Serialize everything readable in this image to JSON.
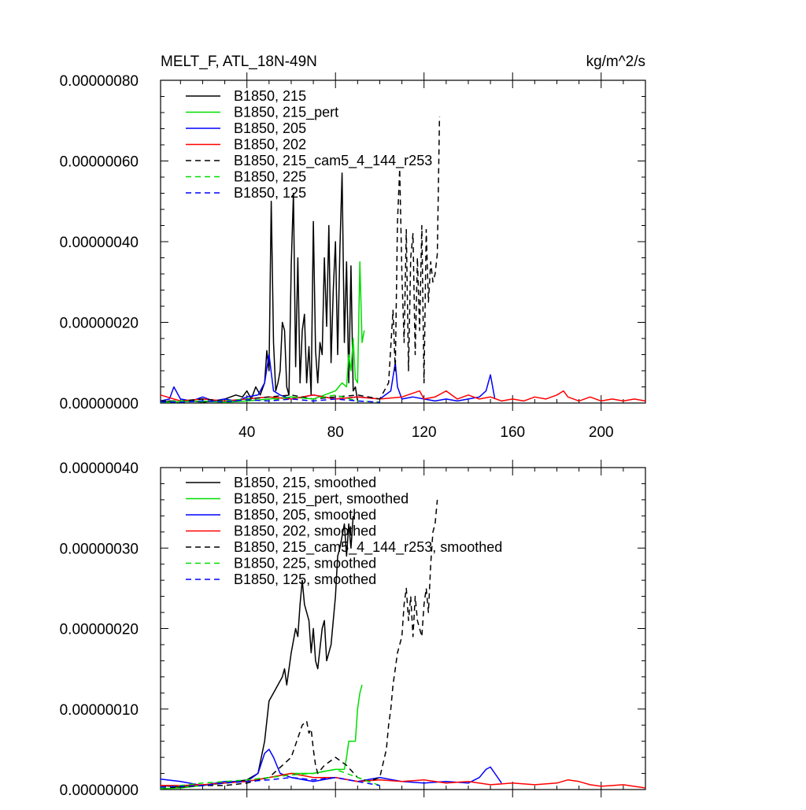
{
  "chart_data": [
    {
      "type": "line",
      "title_left": "MELT_F, ATL_18N-49N",
      "title_right": "kg/m^2/s",
      "xlim": [
        1,
        220
      ],
      "ylim": [
        0,
        8e-07
      ],
      "x_ticks": [
        40,
        80,
        120,
        160,
        200
      ],
      "x_tick_labels": [
        "40",
        "80",
        "120",
        "160",
        "200"
      ],
      "y_ticks": [
        0,
        2e-07,
        4e-07,
        6e-07,
        8e-07
      ],
      "y_tick_labels": [
        "0.00000000",
        "0.00000020",
        "0.00000040",
        "0.00000060",
        "0.00000080"
      ],
      "legend_position": "top-left",
      "series": [
        {
          "name": "B1850, 215",
          "color": "#000000",
          "dash": false,
          "x": [
            1,
            5,
            10,
            15,
            20,
            25,
            30,
            35,
            38,
            40,
            42,
            44,
            46,
            48,
            49,
            50,
            51,
            52,
            53,
            54,
            55,
            56,
            57,
            58,
            59,
            60,
            61,
            62,
            63,
            64,
            65,
            66,
            67,
            68,
            69,
            70,
            71,
            72,
            73,
            74,
            75,
            76,
            77,
            78,
            79,
            80,
            81,
            82,
            83,
            84,
            85,
            86,
            87,
            88,
            89,
            90
          ],
          "y": [
            0,
            5e-09,
            2e-09,
            5e-09,
            2e-09,
            5e-09,
            1e-08,
            2e-08,
            1.5e-08,
            3e-08,
            1e-08,
            4e-08,
            2e-08,
            5e-08,
            1.3e-07,
            8e-08,
            5e-07,
            1.5e-07,
            3e-08,
            5e-08,
            8e-08,
            2e-07,
            1.8e-07,
            4e-08,
            2e-08,
            3.4e-07,
            5.2e-07,
            9e-08,
            3.6e-07,
            5e-08,
            1.8e-07,
            2.2e-07,
            5e-08,
            1.4e-07,
            2e-08,
            4.5e-07,
            1.3e-07,
            5e-08,
            1.5e-07,
            1.2e-07,
            3.6e-07,
            1.9e-07,
            4.4e-07,
            1e-07,
            2.8e-07,
            4e-07,
            1.2e-07,
            3.8e-07,
            5.7e-07,
            1.5e-07,
            3.5e-07,
            5e-08,
            3.4e-07,
            3e-08,
            4e-08,
            5e-09
          ]
        },
        {
          "name": "B1850, 215_pert",
          "color": "#00dd00",
          "dash": false,
          "x": [
            1,
            10,
            20,
            30,
            40,
            50,
            60,
            70,
            75,
            80,
            83,
            85,
            86,
            87,
            88,
            89,
            90,
            91,
            92,
            93
          ],
          "y": [
            2e-09,
            3e-09,
            5e-09,
            2e-09,
            5e-09,
            1e-08,
            1.5e-08,
            1e-08,
            2e-08,
            3e-08,
            5e-08,
            4e-08,
            1.2e-07,
            8e-08,
            1.6e-07,
            6e-08,
            5e-08,
            3.5e-07,
            1.5e-07,
            1.8e-07
          ]
        },
        {
          "name": "B1850, 205",
          "color": "#0000ff",
          "dash": false,
          "x": [
            1,
            5,
            7,
            10,
            15,
            20,
            25,
            30,
            35,
            40,
            45,
            48,
            50,
            52,
            55,
            60,
            70,
            80,
            90,
            100,
            105,
            107,
            108,
            110,
            115,
            120,
            125,
            130,
            135,
            140,
            145,
            148,
            150,
            152
          ],
          "y": [
            5e-09,
            1e-08,
            4e-08,
            1e-08,
            5e-09,
            1.5e-08,
            5e-09,
            1e-08,
            5e-09,
            1.5e-08,
            2e-08,
            5e-08,
            1.2e-07,
            3e-08,
            2e-08,
            1e-08,
            2e-08,
            1e-08,
            1.5e-08,
            1e-08,
            3e-08,
            1e-07,
            4e-08,
            1e-08,
            1.5e-08,
            1e-08,
            5e-09,
            1e-08,
            5e-09,
            1e-08,
            1.5e-08,
            3e-08,
            7e-08,
            1e-08
          ]
        },
        {
          "name": "B1850, 202",
          "color": "#ff0000",
          "dash": false,
          "x": [
            1,
            10,
            20,
            30,
            40,
            50,
            60,
            70,
            80,
            90,
            100,
            110,
            118,
            120,
            125,
            130,
            135,
            140,
            145,
            150,
            155,
            160,
            165,
            170,
            175,
            180,
            183,
            185,
            190,
            195,
            200,
            205,
            210,
            215,
            220
          ],
          "y": [
            2e-08,
            5e-09,
            1e-08,
            5e-09,
            1e-08,
            1.5e-08,
            1e-08,
            2e-08,
            1e-08,
            1.5e-08,
            1e-08,
            1.5e-08,
            3e-08,
            1e-08,
            1.5e-08,
            3e-08,
            1e-08,
            2e-08,
            1e-08,
            1.5e-08,
            5e-09,
            1e-08,
            5e-09,
            1.5e-08,
            1e-08,
            2e-08,
            3e-08,
            1.5e-08,
            5e-09,
            1.5e-08,
            5e-09,
            1e-08,
            5e-09,
            1e-08,
            5e-09
          ]
        },
        {
          "name": "B1850, 215_cam5_4_144_r253",
          "color": "#000000",
          "dash": true,
          "x": [
            1,
            10,
            20,
            30,
            40,
            50,
            60,
            70,
            80,
            90,
            100,
            104,
            106,
            107,
            108,
            109,
            110,
            111,
            112,
            113,
            114,
            115,
            116,
            117,
            118,
            119,
            120,
            121,
            122,
            123,
            124,
            125,
            126,
            127
          ],
          "y": [
            5e-09,
            5e-09,
            1e-08,
            5e-09,
            1e-08,
            1.5e-08,
            2e-08,
            1e-08,
            1.5e-08,
            2e-08,
            1e-08,
            5e-08,
            2.3e-07,
            8e-08,
            4.5e-07,
            5.8e-07,
            3.2e-07,
            1.5e-07,
            4.3e-07,
            8e-08,
            3.6e-07,
            4.2e-07,
            1.2e-07,
            3.6e-07,
            1.8e-07,
            4.4e-07,
            5e-08,
            4.3e-07,
            2.5e-07,
            3.5e-07,
            3e-07,
            3.2e-07,
            3.7e-07,
            7.1e-07
          ]
        },
        {
          "name": "B1850, 225",
          "color": "#00dd00",
          "dash": true,
          "x": [
            1,
            10,
            20,
            30,
            40,
            50,
            60,
            70,
            80,
            90,
            100
          ],
          "y": [
            2e-09,
            5e-09,
            3e-09,
            5e-09,
            1e-08,
            5e-09,
            1.5e-08,
            1e-08,
            2e-08,
            5e-09,
            2e-09
          ]
        },
        {
          "name": "B1850, 125",
          "color": "#0000ff",
          "dash": true,
          "x": [
            1,
            10,
            20,
            30,
            40,
            50,
            60,
            70,
            80,
            90,
            100
          ],
          "y": [
            3e-09,
            2e-09,
            5e-09,
            3e-09,
            8e-09,
            5e-09,
            1e-08,
            5e-09,
            1e-08,
            5e-09,
            2e-09
          ]
        }
      ]
    },
    {
      "type": "line",
      "xlim": [
        1,
        220
      ],
      "ylim": [
        0,
        4e-07
      ],
      "y_ticks": [
        0,
        1e-07,
        2e-07,
        3e-07,
        4e-07
      ],
      "y_tick_labels": [
        "0.00000000",
        "0.00000010",
        "0.00000020",
        "0.00000030",
        "0.00000040"
      ],
      "x_ticks": [
        40,
        80,
        120,
        160,
        200
      ],
      "legend_position": "top-left",
      "series": [
        {
          "name": "B1850, 215, smoothed",
          "color": "#000000",
          "dash": false,
          "x": [
            1,
            10,
            20,
            30,
            35,
            40,
            45,
            48,
            50,
            52,
            54,
            56,
            57,
            58,
            60,
            62,
            63,
            64,
            65,
            66,
            68,
            69,
            70,
            71,
            72,
            74,
            75,
            76,
            78,
            80,
            81,
            82,
            84,
            85,
            86,
            87,
            88
          ],
          "y": [
            5e-09,
            3e-09,
            5e-09,
            8e-09,
            1e-08,
            1.2e-08,
            2e-08,
            6e-08,
            1.1e-07,
            1.2e-07,
            1.3e-07,
            1.4e-07,
            1.5e-07,
            1.3e-07,
            1.7e-07,
            2e-07,
            1.9e-07,
            2.3e-07,
            2.6e-07,
            2.3e-07,
            2.1e-07,
            1.7e-07,
            2e-07,
            1.6e-07,
            1.5e-07,
            2e-07,
            2.1e-07,
            1.6e-07,
            1.8e-07,
            2.4e-07,
            2.9e-07,
            3e-07,
            3.3e-07,
            2.9e-07,
            3.3e-07,
            3e-07,
            3.4e-07
          ]
        },
        {
          "name": "B1850, 215_pert, smoothed",
          "color": "#00dd00",
          "dash": false,
          "x": [
            1,
            10,
            20,
            30,
            40,
            50,
            60,
            70,
            80,
            84,
            85,
            86,
            87,
            88,
            89,
            90,
            91,
            92
          ],
          "y": [
            1e-09,
            2e-09,
            5e-09,
            8e-09,
            1e-08,
            1.5e-08,
            2e-08,
            2e-08,
            2.5e-08,
            2.5e-08,
            4e-08,
            6e-08,
            6e-08,
            6e-08,
            6e-08,
            1e-07,
            1.2e-07,
            1.3e-07
          ]
        },
        {
          "name": "B1850, 205, smoothed",
          "color": "#0000ff",
          "dash": false,
          "x": [
            1,
            10,
            20,
            30,
            40,
            45,
            48,
            50,
            52,
            55,
            60,
            70,
            80,
            90,
            100,
            110,
            120,
            130,
            140,
            145,
            148,
            150,
            152,
            155
          ],
          "y": [
            1.3e-08,
            1e-08,
            5e-09,
            1e-08,
            1e-08,
            2e-08,
            4.5e-08,
            5e-08,
            4e-08,
            2e-08,
            1.5e-08,
            1e-08,
            1.5e-08,
            1e-08,
            1.5e-08,
            1e-08,
            8e-09,
            1e-08,
            8e-09,
            1.5e-08,
            2.5e-08,
            2.8e-08,
            2e-08,
            8e-09
          ]
        },
        {
          "name": "B1850, 202, smoothed",
          "color": "#ff0000",
          "dash": false,
          "x": [
            1,
            10,
            20,
            30,
            40,
            50,
            60,
            70,
            80,
            90,
            100,
            110,
            120,
            130,
            140,
            150,
            160,
            170,
            180,
            185,
            190,
            195,
            200,
            210,
            220
          ],
          "y": [
            5e-09,
            5e-09,
            6e-09,
            8e-09,
            1e-08,
            1.5e-08,
            2e-08,
            1.5e-08,
            1.5e-08,
            1e-08,
            1.2e-08,
            1e-08,
            1.2e-08,
            8e-09,
            1e-08,
            6e-09,
            8e-09,
            6e-09,
            8e-09,
            1.2e-08,
            1e-08,
            6e-09,
            4e-09,
            6e-09,
            2e-09
          ]
        },
        {
          "name": "B1850, 215_cam5_4_144_r253, smoothed",
          "color": "#000000",
          "dash": true,
          "x": [
            1,
            10,
            20,
            30,
            40,
            50,
            60,
            65,
            67,
            68,
            69,
            70,
            71,
            72,
            75,
            80,
            85,
            90,
            95,
            100,
            103,
            104,
            105,
            106,
            107,
            108,
            110,
            111,
            112,
            113,
            114,
            115,
            116,
            117,
            118,
            119,
            120,
            121,
            122,
            123,
            124,
            125,
            126
          ],
          "y": [
            2e-09,
            3e-09,
            5e-09,
            5e-09,
            8e-09,
            1.5e-08,
            4e-08,
            8e-08,
            8.5e-08,
            7e-08,
            7.5e-08,
            5e-08,
            3e-08,
            2e-08,
            3e-08,
            4e-08,
            3e-08,
            1.5e-08,
            1e-08,
            1.5e-08,
            5e-08,
            8e-08,
            1e-07,
            1.3e-07,
            1.5e-07,
            1.7e-07,
            1.9e-07,
            2.3e-07,
            2.5e-07,
            2.1e-07,
            2.4e-07,
            1.9e-07,
            2.4e-07,
            2.1e-07,
            2e-07,
            1.9e-07,
            2.3e-07,
            2.5e-07,
            2.2e-07,
            2.8e-07,
            3.2e-07,
            3.3e-07,
            3.6e-07
          ]
        },
        {
          "name": "B1850, 225, smoothed",
          "color": "#00dd00",
          "dash": true,
          "x": [
            1,
            10,
            20,
            30,
            40,
            50,
            60,
            70,
            80,
            90,
            100
          ],
          "y": [
            2e-09,
            5e-09,
            8e-09,
            1e-08,
            1.2e-08,
            1.5e-08,
            1.8e-08,
            2e-08,
            2.5e-08,
            1.5e-08,
            5e-09
          ]
        },
        {
          "name": "B1850, 125, smoothed",
          "color": "#0000ff",
          "dash": true,
          "x": [
            1,
            10,
            20,
            30,
            40,
            50,
            60,
            70,
            80,
            90,
            100
          ],
          "y": [
            3e-09,
            4e-09,
            5e-09,
            8e-09,
            1e-08,
            1.2e-08,
            1.5e-08,
            1.2e-08,
            1.5e-08,
            1e-08,
            5e-09
          ]
        }
      ]
    }
  ]
}
